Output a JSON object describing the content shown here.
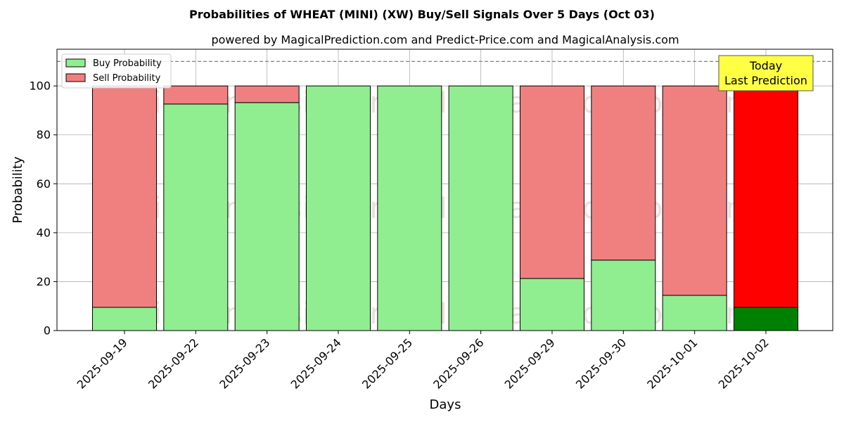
{
  "chart_data": {
    "type": "bar",
    "stacked": true,
    "title": "Probabilities of WHEAT (MINI) (XW) Buy/Sell Signals Over 5 Days (Oct 03)",
    "subtitle": "powered by MagicalPrediction.com and Predict-Price.com and MagicalAnalysis.com",
    "xlabel": "Days",
    "ylabel": "Probability",
    "ylim": [
      0,
      115
    ],
    "yticks": [
      0,
      20,
      40,
      60,
      80,
      100
    ],
    "reference_line": 110,
    "grid": true,
    "legend_position": "top-left",
    "categories": [
      "2025-09-19",
      "2025-09-22",
      "2025-09-23",
      "2025-09-24",
      "2025-09-25",
      "2025-09-26",
      "2025-09-29",
      "2025-09-30",
      "2025-10-01",
      "2025-10-02"
    ],
    "series": [
      {
        "name": "Buy Probability",
        "color": "#90ee90",
        "today_color": "#008000",
        "values": [
          9.5,
          92.6,
          93.2,
          100,
          100,
          100,
          21.3,
          28.8,
          14.4,
          9.5
        ]
      },
      {
        "name": "Sell Probability",
        "color": "#f08080",
        "today_color": "#ff0000",
        "values": [
          90.5,
          7.4,
          6.8,
          0,
          0,
          0,
          78.7,
          71.2,
          85.6,
          90.5
        ]
      }
    ],
    "annotation": {
      "lines": [
        "Today",
        "Last Prediction"
      ],
      "category_index": 9,
      "background": "#ffff44"
    },
    "watermarks": [
      "MagicalAnalysis.com",
      "MagicalPrediction.com"
    ]
  }
}
